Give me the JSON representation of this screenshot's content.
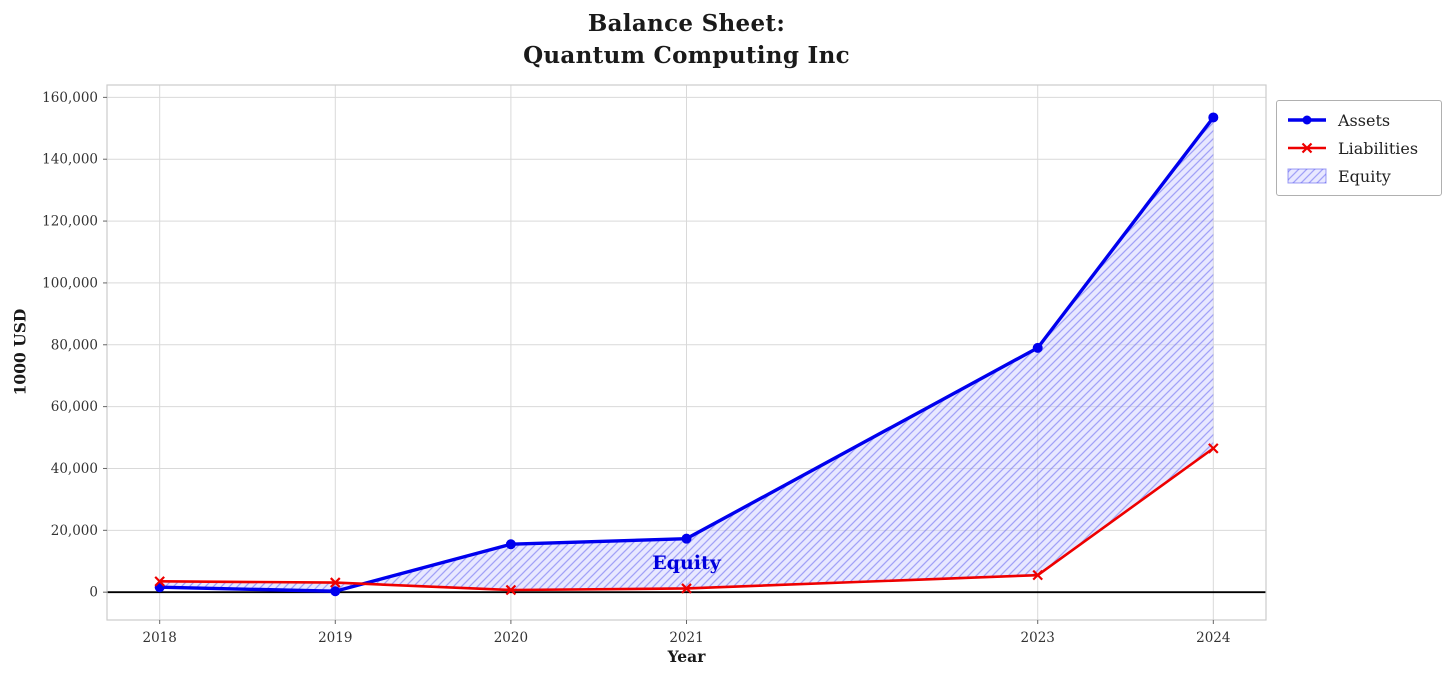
{
  "figure": {
    "background": "#ffffff"
  },
  "chart_data": {
    "type": "line",
    "title": "Balance Sheet:\nQuantum Computing Inc",
    "xlabel": "Year",
    "ylabel": "1000 USD",
    "x": [
      2018,
      2019,
      2020,
      2021,
      2023,
      2024
    ],
    "series": [
      {
        "name": "Assets",
        "color": "#0000ee",
        "marker": "circle",
        "line_width": 3.4,
        "values": [
          1600,
          300,
          15500,
          17300,
          79000,
          153500
        ]
      },
      {
        "name": "Liabilities",
        "color": "#ee0000",
        "marker": "x",
        "line_width": 2.6,
        "values": [
          3500,
          3100,
          700,
          1200,
          5500,
          46500
        ]
      }
    ],
    "fill": {
      "name": "Equity",
      "between": [
        "Assets",
        "Liabilities"
      ],
      "equity_values": [
        -1900,
        -2800,
        14800,
        16100,
        73500,
        107000
      ],
      "face_color": "#ccccff",
      "face_opacity": 0.45,
      "hatch_color": "#5a5af0"
    },
    "annotation": {
      "text": "Equity",
      "x": 2021.0,
      "y": 9500,
      "color": "#0000dd"
    },
    "xlim": [
      2017.7,
      2024.3
    ],
    "ylim": [
      -9000,
      164000
    ],
    "xticks": [
      2018,
      2019,
      2020,
      2021,
      2023,
      2024
    ],
    "yticks": [
      0,
      20000,
      40000,
      60000,
      80000,
      100000,
      120000,
      140000,
      160000
    ],
    "grid": true,
    "grid_color": "#d9d9d9",
    "spine_color": "#cccccc",
    "zero_line": {
      "y": 0,
      "color": "#000000"
    },
    "legend": {
      "position": "upper-right",
      "entries": [
        "Assets",
        "Liabilities",
        "Equity"
      ]
    }
  }
}
